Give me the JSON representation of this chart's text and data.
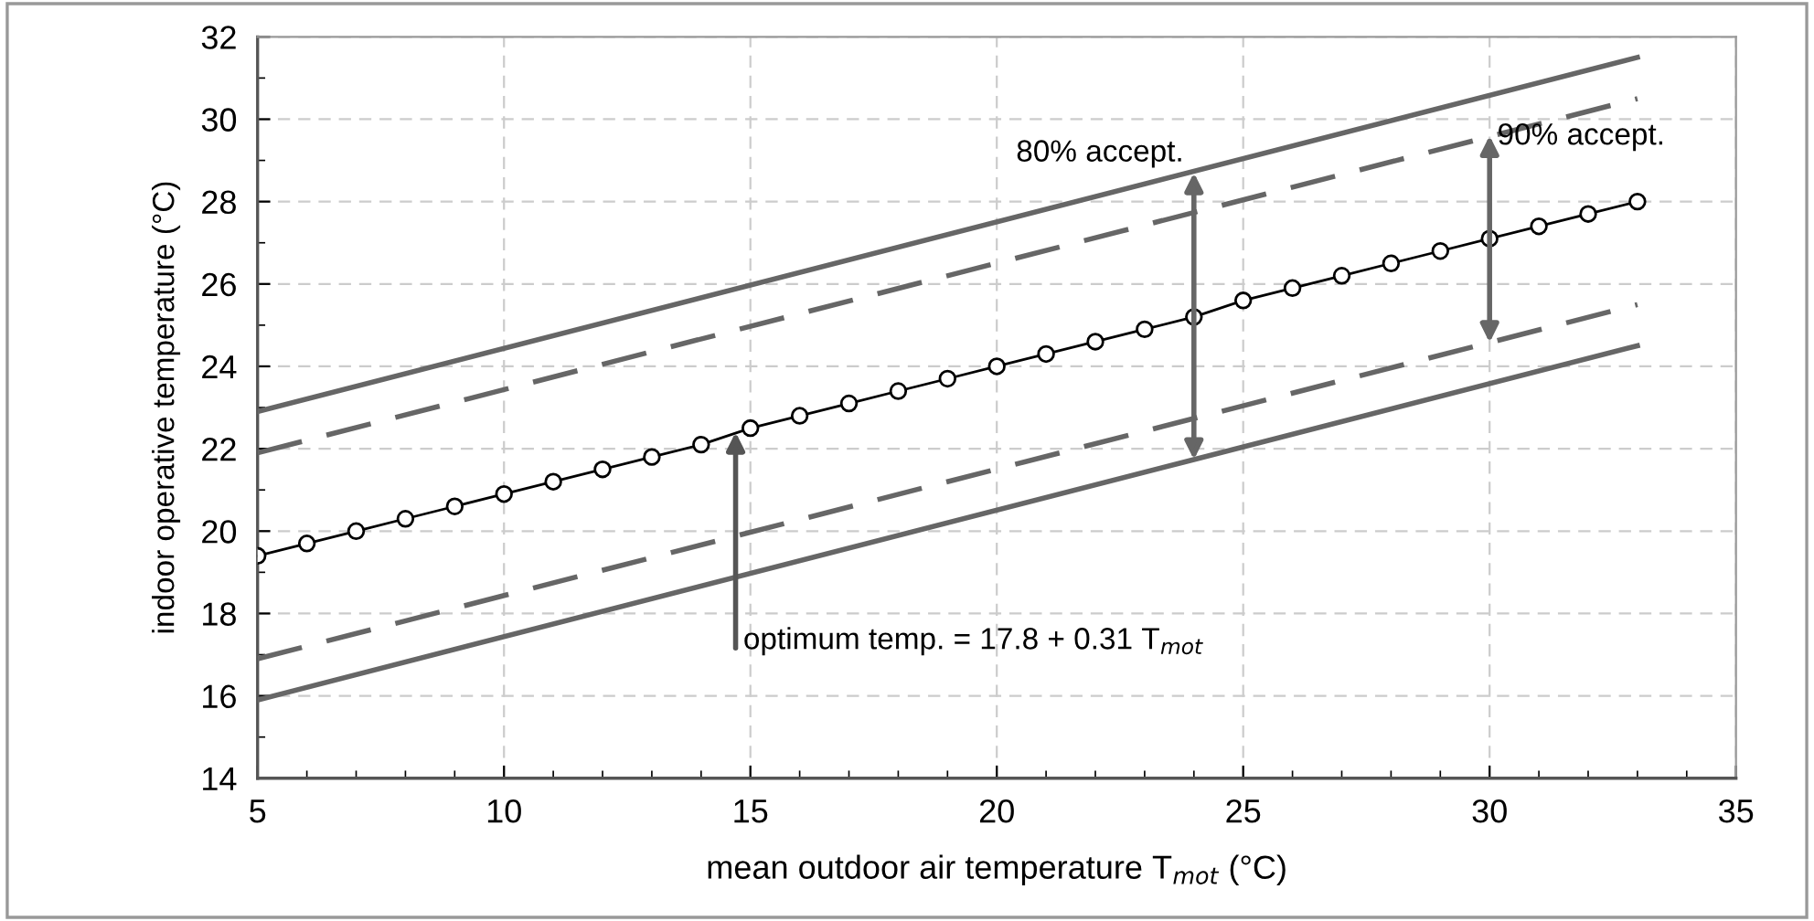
{
  "chart_data": {
    "type": "line",
    "xlabel": "mean outdoor air temperature T$_{mot}$ (°C)",
    "ylabel": "indoor operative temperature (°C)",
    "xlim": [
      5,
      35
    ],
    "xticks": [
      5,
      10,
      15,
      20,
      25,
      30,
      35
    ],
    "ylim": [
      14,
      32
    ],
    "yticks": [
      14,
      16,
      18,
      20,
      22,
      24,
      26,
      28,
      30,
      32
    ],
    "grid": true,
    "series": [
      {
        "x": [
          5,
          33
        ],
        "values": [
          22.9,
          31.5
        ],
        "color": "#666666",
        "line_style": "solid",
        "marker": "none"
      },
      {
        "x": [
          5,
          33
        ],
        "values": [
          21.9,
          30.5
        ],
        "color": "#666666",
        "line_style": "dashed",
        "marker": "none"
      },
      {
        "x": [
          5,
          6,
          7,
          8,
          9,
          10,
          11,
          12,
          13,
          14,
          15,
          16,
          17,
          18,
          19,
          20,
          21,
          22,
          23,
          24,
          25,
          26,
          27,
          28,
          29,
          30,
          31,
          32,
          33
        ],
        "values": [
          19.4,
          19.7,
          20.0,
          20.3,
          20.6,
          20.9,
          21.2,
          21.5,
          21.8,
          22.1,
          22.5,
          22.8,
          23.1,
          23.4,
          23.7,
          24.0,
          24.3,
          24.6,
          24.9,
          25.2,
          25.6,
          25.9,
          26.2,
          26.5,
          26.8,
          27.1,
          27.4,
          27.7,
          28.0
        ],
        "color": "#000000",
        "line_style": "solid",
        "marker": "circle"
      },
      {
        "x": [
          5,
          33
        ],
        "values": [
          16.9,
          25.5
        ],
        "color": "#666666",
        "line_style": "dashed",
        "marker": "none"
      },
      {
        "x": [
          5,
          33
        ],
        "values": [
          15.9,
          24.5
        ],
        "color": "#666666",
        "line_style": "solid",
        "marker": "none"
      }
    ],
    "annotations": [
      {
        "text": "80% accept.",
        "x": 24,
        "y": 28.7
      },
      {
        "text": "90% accept.",
        "x": 30,
        "y": 29.6
      },
      {
        "text": "optimum temp. = 17.8 + 0.31 T$_{mot}$",
        "x": 14.7,
        "y": 22.4
      }
    ]
  }
}
